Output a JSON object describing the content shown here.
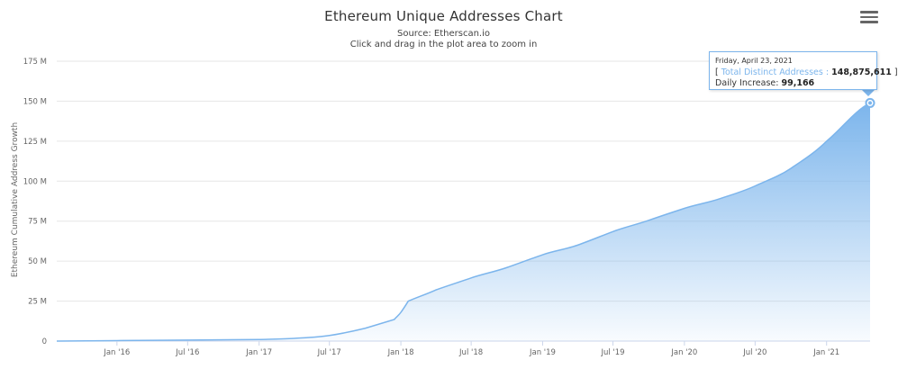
{
  "header": {
    "title": "Ethereum Unique Addresses Chart",
    "subtitle_source": "Source: Etherscan.io",
    "subtitle_hint": "Click and drag in the plot area to zoom in"
  },
  "menu": {
    "icon": "hamburger-menu-icon"
  },
  "tooltip": {
    "date": "Friday, April 23, 2021",
    "open_bracket": "[",
    "series_label": "Total Distinct Addresses :",
    "series_value": "148,875,611",
    "close_bracket": "]",
    "increase_label": "Daily Increase:",
    "increase_value": "99,166"
  },
  "colors": {
    "series": "#7cb5ec",
    "grid": "#e6e6e6",
    "axis_text": "#666666"
  },
  "chart_data": {
    "type": "area",
    "title": "Ethereum Unique Addresses Chart",
    "subtitle": "Source: Etherscan.io",
    "xlabel": "",
    "ylabel": "Ethereum Cumulative Address Growth",
    "ylim": [
      0,
      175000000
    ],
    "xlim": [
      "2015-07-30",
      "2021-04-23"
    ],
    "yticks": [
      0,
      25000000,
      50000000,
      75000000,
      100000000,
      125000000,
      150000000,
      175000000
    ],
    "ytick_labels": [
      "0",
      "25 M",
      "50 M",
      "75 M",
      "100 M",
      "125 M",
      "150 M",
      "175 M"
    ],
    "xticks": [
      "2016-01-01",
      "2016-07-01",
      "2017-01-01",
      "2017-07-01",
      "2018-01-01",
      "2018-07-01",
      "2019-01-01",
      "2019-07-01",
      "2020-01-01",
      "2020-07-01",
      "2021-01-01"
    ],
    "xtick_labels": [
      "Jan '16",
      "Jul '16",
      "Jan '17",
      "Jul '17",
      "Jan '18",
      "Jul '18",
      "Jan '19",
      "Jul '19",
      "Jan '20",
      "Jul '20",
      "Jan '21"
    ],
    "grid": true,
    "legend": "none",
    "highlight": {
      "x": "2021-04-23",
      "y": 148875611
    },
    "series": [
      {
        "name": "Total Distinct Addresses",
        "x": [
          "2015-07-30",
          "2016-01-01",
          "2016-07-01",
          "2017-01-01",
          "2017-04-01",
          "2017-07-01",
          "2017-10-01",
          "2017-12-15",
          "2018-01-01",
          "2018-01-20",
          "2018-04-01",
          "2018-07-01",
          "2018-10-01",
          "2019-01-01",
          "2019-04-01",
          "2019-07-01",
          "2019-10-01",
          "2020-01-01",
          "2020-04-01",
          "2020-07-01",
          "2020-10-01",
          "2021-01-01",
          "2021-04-23"
        ],
        "values": [
          0,
          300000,
          600000,
          1000000,
          1700000,
          3500000,
          8000000,
          13500000,
          18000000,
          25000000,
          32000000,
          39500000,
          46000000,
          54000000,
          60000000,
          68500000,
          75500000,
          83000000,
          89000000,
          97000000,
          108000000,
          125000000,
          148875611
        ]
      }
    ]
  }
}
